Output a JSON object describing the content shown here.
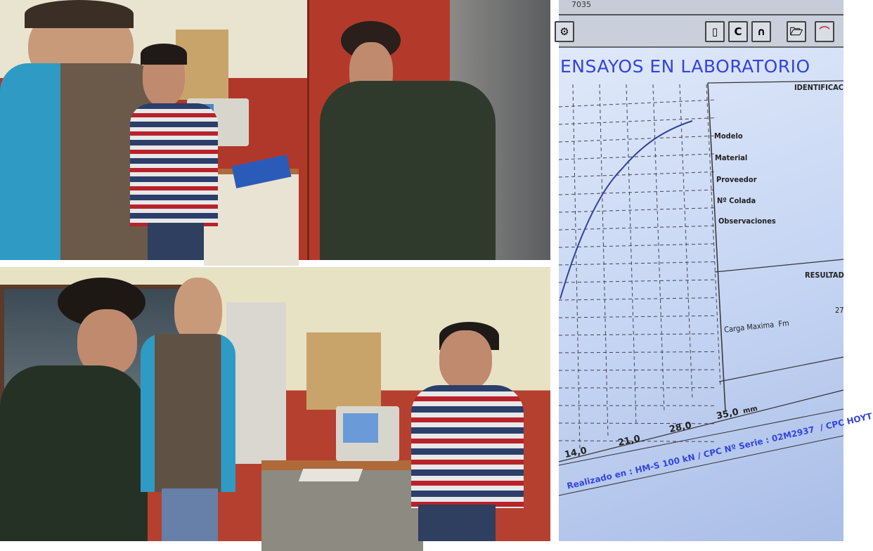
{
  "screen": {
    "top_code": "7035",
    "title": "ENSAYOS EN LABORATORIO",
    "ident_heading": "IDENTIFICAC",
    "fields": [
      "Modelo",
      "Material",
      "Proveedor",
      "Nº Colada",
      "Observaciones"
    ],
    "results_heading": "RESULTAD",
    "result_label": "Carga Maxima  Fm",
    "result_value": "27",
    "x_ticks": [
      "14,0",
      "21,0",
      "28,0",
      "35,0"
    ],
    "x_unit": "mm",
    "footer": "Realizado en : HM-S 100 kN / CPC Nº Serie : 02M2937  / CPC HOYT",
    "toolbar_icons": [
      "gear-icon",
      "new-document-icon",
      "c-icon",
      "curve-icon",
      "open-folder-icon",
      "chart-icon"
    ],
    "title_color": "#3344dd",
    "curve_color": "#334499"
  }
}
